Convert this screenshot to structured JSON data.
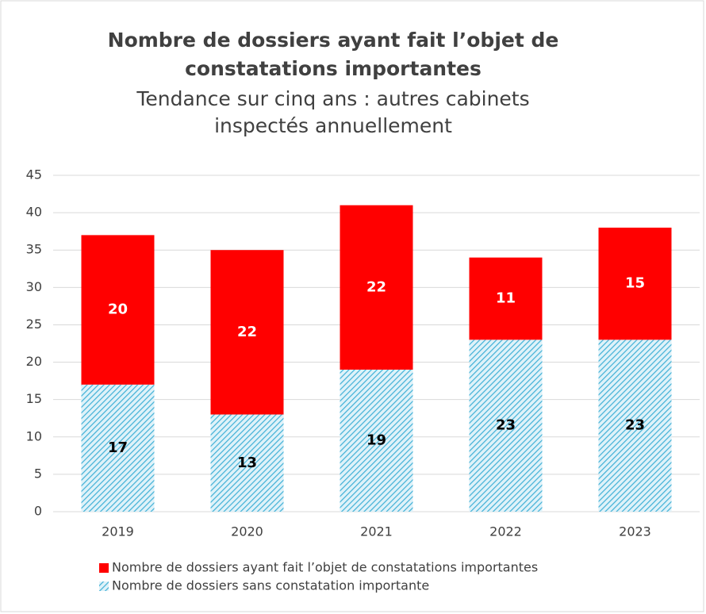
{
  "chart_data": {
    "type": "stacked_bar",
    "title": [
      "Nombre de dossiers ayant fait l’objet de",
      "constatations importantes"
    ],
    "subtitle": [
      "Tendance sur cinq ans : autres cabinets",
      "inspectés annuellement"
    ],
    "categories": [
      "2019",
      "2020",
      "2021",
      "2022",
      "2023"
    ],
    "series": [
      {
        "name": "Nombre de dossiers sans constatation importante",
        "color": "#3fb0d6",
        "pattern": "hatch",
        "label_color": "#000000",
        "values": [
          17,
          13,
          19,
          23,
          23
        ]
      },
      {
        "name": "Nombre de dossiers ayant fait l’objet de constatations importantes",
        "color": "#ff0000",
        "pattern": "solid",
        "label_color": "#ffffff",
        "values": [
          20,
          22,
          22,
          11,
          15
        ]
      }
    ],
    "legend_order": [
      1,
      0
    ],
    "ylim": [
      0,
      45
    ],
    "yticks": [
      0,
      5,
      10,
      15,
      20,
      25,
      30,
      35,
      40,
      45
    ],
    "grid": true
  }
}
